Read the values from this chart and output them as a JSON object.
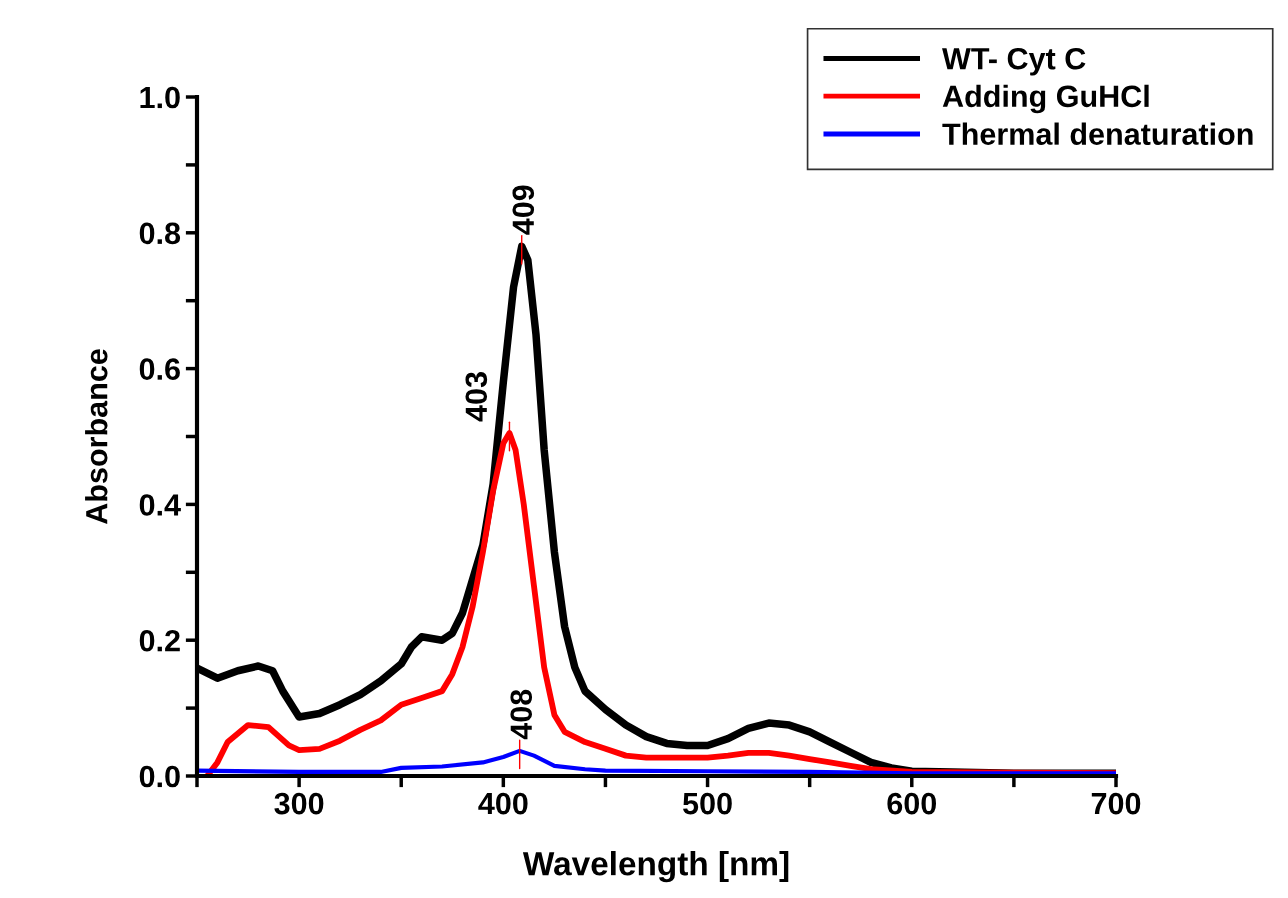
{
  "chart_data": {
    "type": "line",
    "xlabel": "Wavelength [nm]",
    "ylabel": "Absorbance",
    "xlim": [
      250,
      700
    ],
    "ylim": [
      0,
      1.0
    ],
    "xticks": [
      {
        "value": 250,
        "label": null
      },
      300,
      {
        "value": 350,
        "label": null
      },
      400,
      {
        "value": 450,
        "label": null
      },
      500,
      {
        "value": 550,
        "label": null
      },
      600,
      {
        "value": 650,
        "label": null
      },
      700
    ],
    "yticks": [
      {
        "value": 0,
        "label": "0.0"
      },
      {
        "value": 0.1,
        "label": null
      },
      0.2,
      {
        "value": 0.3,
        "label": null
      },
      0.4,
      {
        "value": 0.5,
        "label": null
      },
      0.6,
      {
        "value": 0.7,
        "label": null
      },
      0.8,
      {
        "value": 0.9,
        "label": null
      },
      {
        "value": 1.0,
        "label": "1.0"
      }
    ],
    "grid": false,
    "legend": "top right",
    "marker": "none",
    "line_style": "solid",
    "series": [
      {
        "name": "WT- Cyt C",
        "color": "#000000",
        "x": [
          250,
          260,
          270,
          280,
          287,
          292,
          300,
          310,
          320,
          330,
          340,
          350,
          355,
          360,
          370,
          375,
          380,
          390,
          395,
          400,
          405,
          409,
          412,
          416,
          420,
          425,
          430,
          435,
          440,
          450,
          460,
          470,
          480,
          490,
          500,
          510,
          520,
          530,
          540,
          550,
          560,
          570,
          580,
          590,
          600,
          620,
          650,
          700
        ],
        "values": [
          0.159,
          0.144,
          0.155,
          0.162,
          0.155,
          0.125,
          0.087,
          0.092,
          0.105,
          0.12,
          0.14,
          0.165,
          0.19,
          0.205,
          0.2,
          0.21,
          0.24,
          0.34,
          0.43,
          0.58,
          0.72,
          0.78,
          0.76,
          0.65,
          0.48,
          0.33,
          0.22,
          0.16,
          0.125,
          0.098,
          0.075,
          0.058,
          0.048,
          0.045,
          0.045,
          0.055,
          0.07,
          0.078,
          0.075,
          0.065,
          0.05,
          0.035,
          0.02,
          0.012,
          0.007,
          0.006,
          0.004,
          0.004
        ]
      },
      {
        "name": "Adding GuHCl",
        "color": "#ff0000",
        "x": [
          255,
          260,
          265,
          275,
          285,
          295,
          300,
          310,
          320,
          330,
          340,
          350,
          360,
          370,
          375,
          380,
          385,
          390,
          395,
          400,
          403,
          406,
          410,
          415,
          420,
          425,
          430,
          440,
          450,
          460,
          470,
          490,
          500,
          510,
          520,
          530,
          540,
          550,
          560,
          570,
          580,
          600,
          650,
          700
        ],
        "values": [
          0.0,
          0.02,
          0.05,
          0.075,
          0.072,
          0.045,
          0.038,
          0.04,
          0.052,
          0.068,
          0.082,
          0.105,
          0.115,
          0.125,
          0.15,
          0.19,
          0.25,
          0.33,
          0.42,
          0.49,
          0.505,
          0.48,
          0.4,
          0.28,
          0.16,
          0.09,
          0.065,
          0.05,
          0.04,
          0.03,
          0.027,
          0.027,
          0.027,
          0.03,
          0.034,
          0.034,
          0.03,
          0.025,
          0.02,
          0.015,
          0.01,
          0.006,
          0.005,
          0.004
        ]
      },
      {
        "name": "Thermal denaturation",
        "color": "#0000ff",
        "x": [
          250,
          300,
          340,
          350,
          370,
          390,
          400,
          408,
          415,
          425,
          440,
          450,
          500,
          550,
          600,
          700
        ],
        "values": [
          0.008,
          0.006,
          0.006,
          0.012,
          0.014,
          0.02,
          0.028,
          0.037,
          0.03,
          0.015,
          0.01,
          0.008,
          0.007,
          0.006,
          0.004,
          0.004
        ]
      }
    ],
    "annotations": [
      {
        "text": "409",
        "x": 409,
        "y": 0.78
      },
      {
        "text": "403",
        "x": 403,
        "y": 0.505
      },
      {
        "text": "408",
        "x": 408,
        "y": 0.037
      }
    ]
  }
}
